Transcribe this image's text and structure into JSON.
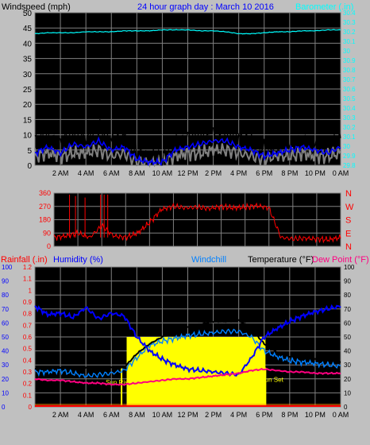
{
  "title": "24 hour graph day : March 10 2016",
  "colors": {
    "bg": "#c0c0c0",
    "plot": "#000000",
    "grid": "#808080",
    "title": "#0000ff",
    "baro": "#00ffff",
    "wind": "#0000ff",
    "gust": "#000000",
    "avg": "#808080",
    "dir": "#ff0000",
    "rain": "#ff0000",
    "humidity": "#0000ff",
    "windchill": "#0080ff",
    "temp": "#000000",
    "dew": "#ff0080",
    "sun": "#ffff00"
  },
  "chart_data": [
    {
      "type": "line",
      "name": "wind",
      "left_axis_label": "Windspeed (mph)",
      "right_axis_label": "Barometer (.in)",
      "ylim": [
        0,
        50
      ],
      "y_ticks": [
        "0",
        "5",
        "10",
        "15",
        "20",
        "25",
        "30",
        "35",
        "40",
        "45",
        "50"
      ],
      "baro_ticks": [
        "29.8",
        "29.9",
        "30",
        "30.1",
        "30.2",
        "30.3",
        "30.4",
        "30.5",
        "30.6",
        "30.7",
        "30.8",
        "30.9",
        "30",
        "30.1",
        "30.2",
        "30.3",
        "30.4"
      ],
      "x_ticks": [
        "2 AM",
        "4 AM",
        "6 AM",
        "8 AM",
        "10 AM",
        "12 PM",
        "2 PM",
        "4 PM",
        "6 PM",
        "8 PM",
        "10 PM",
        "0 AM"
      ],
      "x_hours": [
        0,
        1,
        2,
        3,
        4,
        5,
        6,
        7,
        8,
        9,
        10,
        11,
        12,
        13,
        14,
        15,
        16,
        17,
        18,
        19,
        20,
        21,
        22,
        23,
        24
      ],
      "series": [
        {
          "key": "barometer",
          "values": [
            30.18,
            30.19,
            30.19,
            30.19,
            30.2,
            30.2,
            30.2,
            30.21,
            30.21,
            30.21,
            30.22,
            30.22,
            30.22,
            30.21,
            30.21,
            30.2,
            30.18,
            30.18,
            30.19,
            30.2,
            30.2,
            30.21,
            30.21,
            30.22,
            30.22
          ]
        },
        {
          "key": "gust",
          "values": [
            8,
            10,
            7,
            11,
            9,
            12,
            8,
            9,
            4,
            3,
            2,
            8,
            9,
            10,
            12,
            11,
            9,
            8,
            5,
            6,
            7,
            8,
            7,
            6,
            9
          ]
        },
        {
          "key": "speed",
          "values": [
            4,
            6,
            4,
            7,
            6,
            8,
            5,
            6,
            2,
            1,
            1,
            5,
            6,
            7,
            8,
            8,
            6,
            5,
            3,
            4,
            5,
            6,
            5,
            4,
            6
          ]
        },
        {
          "key": "average",
          "values": [
            3,
            4,
            3,
            4,
            4,
            5,
            3,
            4,
            1,
            1,
            1,
            3,
            4,
            4,
            5,
            5,
            4,
            3,
            2,
            3,
            3,
            4,
            3,
            3,
            4
          ]
        }
      ]
    },
    {
      "type": "scatter",
      "name": "direction",
      "ylim": [
        0,
        360
      ],
      "y_ticks": [
        "0",
        "90",
        "180",
        "270",
        "360"
      ],
      "compass": [
        "N",
        "E",
        "S",
        "W",
        "N"
      ],
      "x_hours": [
        0,
        1,
        2,
        3,
        4,
        5,
        6,
        7,
        8,
        9,
        10,
        11,
        12,
        13,
        14,
        15,
        16,
        17,
        18,
        19,
        20,
        21,
        22,
        23,
        24
      ],
      "values": [
        60,
        70,
        90,
        60,
        140,
        70,
        60,
        90,
        160,
        250,
        270,
        260,
        265,
        255,
        270,
        260,
        265,
        275,
        260,
        60,
        50,
        55,
        50,
        45,
        60
      ]
    },
    {
      "type": "line",
      "name": "temperature",
      "axis_labels": {
        "rain": "Rainfall (.in)",
        "humidity": "Humidity (%)",
        "windchill": "Windchill",
        "temp": "Temperature (°F)",
        "dew": "Dew Point (°F)"
      },
      "left_ticks": [
        "0",
        "10",
        "20",
        "30",
        "40",
        "50",
        "60",
        "70",
        "80",
        "90",
        "100"
      ],
      "rain_ticks": [
        "0",
        "0.1",
        "0.2",
        "0.3",
        "0.4",
        "0.5",
        "0.6",
        "0.7",
        "0.8",
        "0.9",
        "1",
        "1.1",
        "1.2"
      ],
      "right_ticks": [
        "0",
        "10",
        "20",
        "30",
        "40",
        "50",
        "60",
        "70",
        "80",
        "90",
        "100"
      ],
      "ylim": [
        0,
        100
      ],
      "x_hours": [
        0,
        1,
        2,
        3,
        4,
        5,
        6,
        7,
        8,
        9,
        10,
        11,
        12,
        13,
        14,
        15,
        16,
        17,
        18,
        19,
        20,
        21,
        22,
        23,
        24
      ],
      "sun_label_rise": "Sun Rise",
      "sun_label_set": "Sun Set",
      "sun_rise_hour": 6.8,
      "sun_set_hour": 18.1,
      "series": [
        {
          "key": "humidity",
          "values": [
            72,
            66,
            67,
            64,
            71,
            63,
            67,
            65,
            50,
            40,
            34,
            30,
            27,
            26,
            25,
            24,
            23,
            35,
            50,
            56,
            61,
            65,
            68,
            70,
            72
          ]
        },
        {
          "key": "windchill",
          "values": [
            25,
            25,
            26,
            24,
            22,
            23,
            24,
            26,
            35,
            44,
            47,
            49,
            51,
            52,
            53,
            54,
            54,
            50,
            40,
            36,
            33,
            32,
            31,
            30,
            29
          ]
        },
        {
          "key": "temperature",
          "values": [
            27,
            27,
            28,
            27,
            28,
            27,
            28,
            28,
            38,
            45,
            50,
            54,
            57,
            59,
            61,
            61,
            62,
            56,
            45,
            39,
            36,
            35,
            34,
            33,
            32
          ]
        },
        {
          "key": "dewpoint",
          "values": [
            20,
            19,
            19,
            18,
            17,
            17,
            16,
            16,
            17,
            18,
            19,
            20,
            20,
            21,
            22,
            23,
            24,
            26,
            27,
            26,
            25,
            25,
            24,
            24,
            24
          ]
        },
        {
          "key": "rainfall",
          "values": [
            0,
            0,
            0,
            0,
            0,
            0,
            0,
            0,
            0,
            0,
            0,
            0,
            0,
            0,
            0,
            0,
            0,
            0,
            0,
            0,
            0,
            0,
            0,
            0,
            0
          ]
        },
        {
          "key": "solar",
          "values": [
            0,
            0,
            0,
            0,
            0,
            0,
            0,
            40,
            50,
            50,
            50,
            50,
            50,
            50,
            50,
            50,
            50,
            50,
            0,
            0,
            0,
            0,
            0,
            0,
            0
          ]
        }
      ]
    }
  ]
}
